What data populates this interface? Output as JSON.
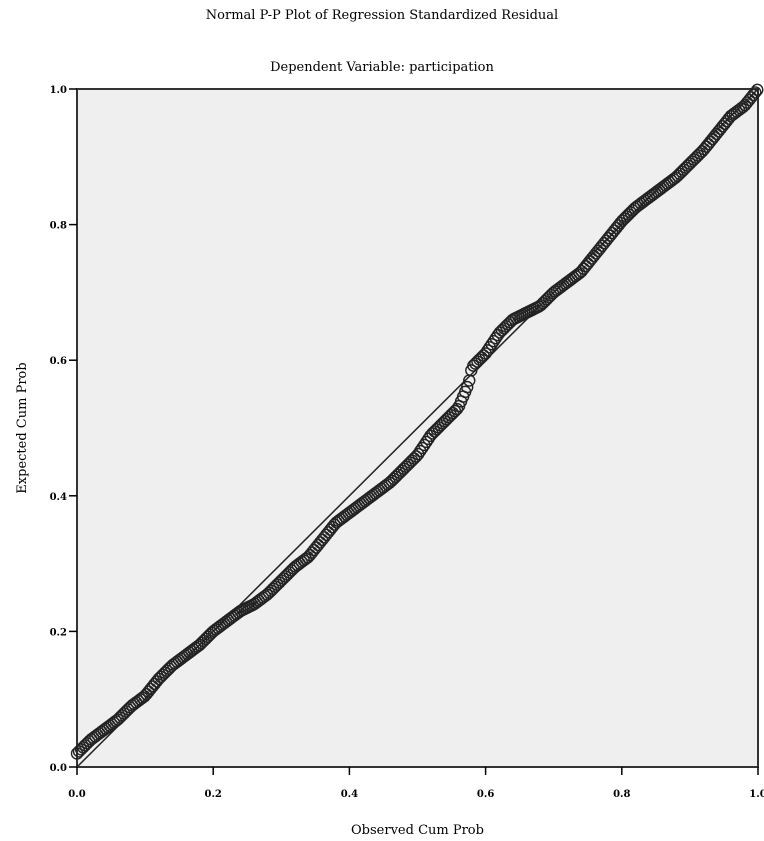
{
  "chart_data": {
    "type": "scatter",
    "title": "Normal P-P Plot of Regression Standardized Residual",
    "subtitle": "Dependent Variable: participation",
    "xlabel": "Observed Cum Prob",
    "ylabel": "Expected Cum Prob",
    "xlim": [
      0,
      1
    ],
    "ylim": [
      0,
      1
    ],
    "xticks": [
      "0.0",
      "0.2",
      "0.4",
      "0.6",
      "0.8",
      "1.0"
    ],
    "yticks": [
      "0.0",
      "0.2",
      "0.4",
      "0.6",
      "0.8",
      "1.0"
    ],
    "reference_line": [
      [
        0,
        0
      ],
      [
        1,
        1
      ]
    ],
    "curve_points": [
      [
        0.0,
        0.02
      ],
      [
        0.02,
        0.04
      ],
      [
        0.04,
        0.055
      ],
      [
        0.06,
        0.07
      ],
      [
        0.08,
        0.09
      ],
      [
        0.1,
        0.105
      ],
      [
        0.12,
        0.13
      ],
      [
        0.14,
        0.15
      ],
      [
        0.16,
        0.165
      ],
      [
        0.18,
        0.18
      ],
      [
        0.2,
        0.2
      ],
      [
        0.22,
        0.215
      ],
      [
        0.24,
        0.23
      ],
      [
        0.26,
        0.24
      ],
      [
        0.28,
        0.255
      ],
      [
        0.3,
        0.275
      ],
      [
        0.32,
        0.295
      ],
      [
        0.34,
        0.31
      ],
      [
        0.36,
        0.335
      ],
      [
        0.38,
        0.36
      ],
      [
        0.4,
        0.375
      ],
      [
        0.42,
        0.39
      ],
      [
        0.44,
        0.405
      ],
      [
        0.46,
        0.42
      ],
      [
        0.48,
        0.44
      ],
      [
        0.5,
        0.46
      ],
      [
        0.52,
        0.49
      ],
      [
        0.54,
        0.51
      ],
      [
        0.56,
        0.53
      ],
      [
        0.575,
        0.565
      ],
      [
        0.58,
        0.59
      ],
      [
        0.6,
        0.61
      ],
      [
        0.62,
        0.64
      ],
      [
        0.64,
        0.66
      ],
      [
        0.66,
        0.67
      ],
      [
        0.68,
        0.68
      ],
      [
        0.7,
        0.7
      ],
      [
        0.72,
        0.715
      ],
      [
        0.74,
        0.73
      ],
      [
        0.76,
        0.755
      ],
      [
        0.78,
        0.78
      ],
      [
        0.8,
        0.805
      ],
      [
        0.82,
        0.825
      ],
      [
        0.84,
        0.84
      ],
      [
        0.86,
        0.855
      ],
      [
        0.88,
        0.87
      ],
      [
        0.9,
        0.89
      ],
      [
        0.92,
        0.91
      ],
      [
        0.94,
        0.935
      ],
      [
        0.96,
        0.96
      ],
      [
        0.98,
        0.975
      ],
      [
        1.0,
        1.0
      ]
    ],
    "grid": false,
    "plot_background": "#efefef",
    "marker_color": "#222222"
  }
}
